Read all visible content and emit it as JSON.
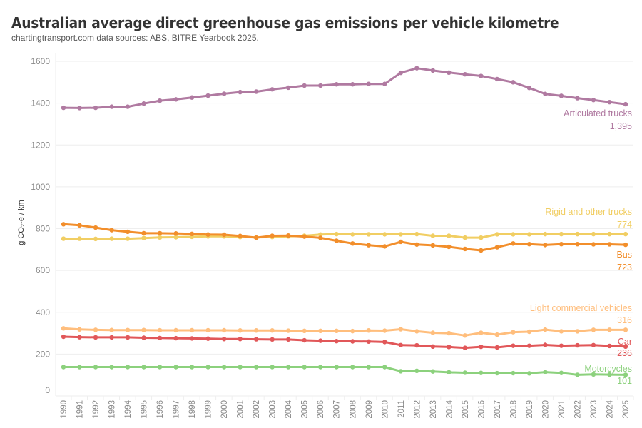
{
  "header": {
    "title": "Australian average direct greenhouse gas emissions per vehicle kilometre",
    "subtitle": "chartingtransport.com  data sources: ABS, BITRE Yearbook 2025."
  },
  "chart_data": {
    "type": "line",
    "title": "Australian average direct greenhouse gas emissions per vehicle kilometre",
    "xlabel": "",
    "ylabel": "g CO₂-e / km",
    "ylim": [
      0,
      1650
    ],
    "yticks": [
      0,
      200,
      400,
      600,
      800,
      1000,
      1200,
      1400,
      1600
    ],
    "grid": true,
    "legend": "inline labels at right end of each line",
    "x": [
      1990,
      1991,
      1992,
      1993,
      1994,
      1995,
      1996,
      1997,
      1998,
      1999,
      2000,
      2001,
      2002,
      2003,
      2004,
      2005,
      2006,
      2007,
      2008,
      2009,
      2010,
      2011,
      2012,
      2013,
      2014,
      2015,
      2016,
      2017,
      2018,
      2019,
      2020,
      2021,
      2022,
      2023,
      2024,
      2025
    ],
    "series": [
      {
        "name": "Articulated trucks",
        "end_label": "1,395",
        "color": "#b07aa1",
        "values": [
          1378,
          1377,
          1378,
          1383,
          1383,
          1398,
          1412,
          1418,
          1427,
          1436,
          1445,
          1453,
          1455,
          1466,
          1474,
          1484,
          1484,
          1490,
          1490,
          1492,
          1492,
          1545,
          1567,
          1556,
          1546,
          1538,
          1530,
          1515,
          1500,
          1473,
          1444,
          1435,
          1424,
          1415,
          1405,
          1395
        ]
      },
      {
        "name": "Rigid and other trucks",
        "end_label": "774",
        "color": "#f1ce63",
        "values": [
          752,
          752,
          751,
          752,
          752,
          755,
          758,
          759,
          761,
          763,
          763,
          760,
          758,
          760,
          763,
          766,
          772,
          774,
          773,
          773,
          773,
          773,
          774,
          766,
          766,
          757,
          757,
          773,
          773,
          773,
          774,
          774,
          774,
          774,
          774,
          774
        ]
      },
      {
        "name": "Bus",
        "end_label": "723",
        "color": "#f28e2b",
        "values": [
          821,
          816,
          805,
          793,
          785,
          778,
          778,
          777,
          775,
          772,
          771,
          765,
          757,
          766,
          767,
          762,
          756,
          742,
          729,
          721,
          715,
          737,
          724,
          720,
          713,
          703,
          696,
          711,
          729,
          726,
          722,
          726,
          726,
          725,
          725,
          723
        ]
      },
      {
        "name": "Light commercial vehicles",
        "end_label": "316",
        "color": "#ffbe7d",
        "values": [
          323,
          318,
          316,
          315,
          315,
          315,
          314,
          314,
          314,
          314,
          314,
          313,
          313,
          313,
          312,
          311,
          311,
          311,
          310,
          313,
          312,
          319,
          309,
          302,
          300,
          289,
          302,
          293,
          305,
          307,
          317,
          309,
          309,
          316,
          316,
          316
        ]
      },
      {
        "name": "Car",
        "end_label": "236",
        "color": "#e15759",
        "values": [
          283,
          281,
          280,
          280,
          280,
          278,
          277,
          276,
          275,
          274,
          272,
          272,
          271,
          270,
          270,
          266,
          264,
          262,
          261,
          260,
          258,
          243,
          242,
          236,
          234,
          230,
          235,
          232,
          240,
          240,
          244,
          240,
          242,
          243,
          239,
          236
        ]
      },
      {
        "name": "Motorcycles",
        "end_label": "101",
        "color": "#8cd17d",
        "values": [
          138,
          138,
          138,
          138,
          138,
          138,
          138,
          138,
          138,
          138,
          138,
          138,
          138,
          138,
          138,
          138,
          138,
          138,
          138,
          138,
          138,
          118,
          120,
          117,
          113,
          111,
          110,
          109,
          109,
          108,
          114,
          110,
          101,
          103,
          102,
          101
        ]
      }
    ]
  },
  "style": {
    "grid_color": "#eeeeee",
    "tick_color": "#8a8a8a"
  }
}
